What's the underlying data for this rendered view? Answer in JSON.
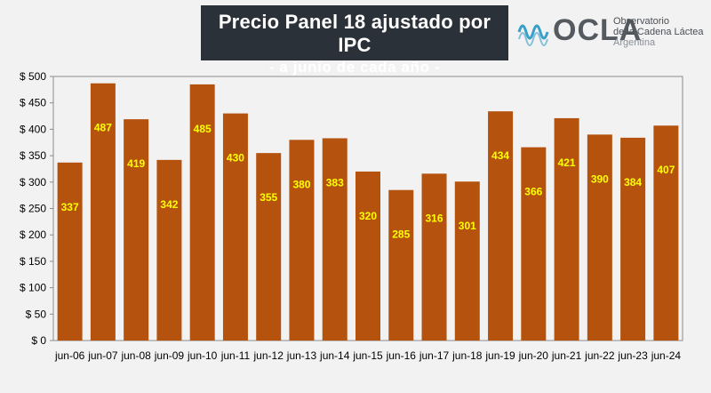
{
  "title": {
    "main": "Precio Panel 18 ajustado por IPC",
    "sub": "- a junio de cada año -"
  },
  "logo": {
    "wordmark": "OCLA",
    "line1": "Observatorio",
    "line2": "de la Cadena Láctea",
    "line3": "Argentina"
  },
  "colors": {
    "bar": "#b5530e",
    "bar_label": "#ffff00",
    "background": "#f2f2f2",
    "title_bg": "#2b3138",
    "logo_waves": "#3aa0c8"
  },
  "chart_data": {
    "type": "bar",
    "title": "Precio Panel 18 ajustado por IPC",
    "subtitle": "- a junio de cada año -",
    "categories": [
      "jun-06",
      "jun-07",
      "jun-08",
      "jun-09",
      "jun-10",
      "jun-11",
      "jun-12",
      "jun-13",
      "jun-14",
      "jun-15",
      "jun-16",
      "jun-17",
      "jun-18",
      "jun-19",
      "jun-20",
      "jun-21",
      "jun-22",
      "jun-23",
      "jun-24"
    ],
    "values": [
      337,
      487,
      419,
      342,
      485,
      430,
      355,
      380,
      383,
      320,
      285,
      316,
      301,
      434,
      366,
      421,
      390,
      384,
      407
    ],
    "ylim": [
      0,
      500
    ],
    "yticks": [
      0,
      50,
      100,
      150,
      200,
      250,
      300,
      350,
      400,
      450,
      500
    ],
    "ytick_labels": [
      "$ 0",
      "$ 50",
      "$ 100",
      "$ 150",
      "$ 200",
      "$ 250",
      "$ 300",
      "$ 350",
      "$ 400",
      "$ 450",
      "$ 500"
    ],
    "grid": false,
    "data_labels": true,
    "xlabel": "",
    "ylabel": ""
  }
}
